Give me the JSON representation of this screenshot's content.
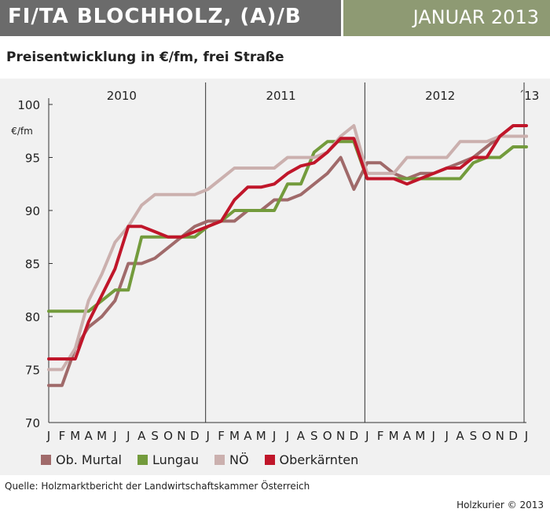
{
  "header": {
    "title": "FI/TA BLOCHHOLZ, (A)/B",
    "date": "JANUAR 2013"
  },
  "subtitle": "Preisentwicklung in €/fm, frei Straße",
  "source": "Quelle: Holzmarktbericht der Landwirtschaftskammer Österreich",
  "credit": "Holzkurier © 2013",
  "chart_data": {
    "type": "line",
    "ylabel": "€/fm",
    "ylim": [
      70,
      100
    ],
    "yticks": [
      70,
      75,
      80,
      85,
      90,
      95,
      100
    ],
    "years": [
      "2010",
      "2011",
      "2012",
      "´13"
    ],
    "month_labels": [
      "J",
      "F",
      "M",
      "A",
      "M",
      "J",
      "J",
      "A",
      "S",
      "O",
      "N",
      "D",
      "J",
      "F",
      "M",
      "A",
      "M",
      "J",
      "J",
      "A",
      "S",
      "O",
      "N",
      "D",
      "J",
      "F",
      "M",
      "A",
      "M",
      "J",
      "J",
      "A",
      "S",
      "O",
      "N",
      "D",
      "J"
    ],
    "x": [
      "2010-01",
      "2010-02",
      "2010-03",
      "2010-04",
      "2010-05",
      "2010-06",
      "2010-07",
      "2010-08",
      "2010-09",
      "2010-10",
      "2010-11",
      "2010-12",
      "2011-01",
      "2011-02",
      "2011-03",
      "2011-04",
      "2011-05",
      "2011-06",
      "2011-07",
      "2011-08",
      "2011-09",
      "2011-10",
      "2011-11",
      "2011-12",
      "2012-01",
      "2012-02",
      "2012-03",
      "2012-04",
      "2012-05",
      "2012-06",
      "2012-07",
      "2012-08",
      "2012-09",
      "2012-10",
      "2012-11",
      "2012-12",
      "2013-01"
    ],
    "grid": false,
    "legend_position": "bottom",
    "series": [
      {
        "name": "Ob. Murtal",
        "color": "#a06a6a",
        "values": [
          73.5,
          73.5,
          77,
          79,
          80,
          81.5,
          85,
          85,
          85.5,
          86.5,
          87.5,
          88.5,
          89,
          89,
          89,
          90,
          90,
          91,
          91,
          91.5,
          92.5,
          93.5,
          95,
          92,
          94.5,
          94.5,
          93.5,
          93,
          93.5,
          93.5,
          94,
          94.5,
          95,
          96,
          97,
          97,
          97
        ]
      },
      {
        "name": "Lungau",
        "color": "#739b3c",
        "values": [
          80.5,
          80.5,
          80.5,
          80.5,
          81.5,
          82.5,
          82.5,
          87.5,
          87.5,
          87.5,
          87.5,
          87.5,
          88.5,
          89,
          90,
          90,
          90,
          90,
          92.5,
          92.5,
          95.5,
          96.5,
          96.5,
          96.5,
          93,
          93,
          93,
          93,
          93,
          93,
          93,
          93,
          94.5,
          95,
          95,
          96,
          96
        ]
      },
      {
        "name": "NÖ",
        "color": "#cbb0ae",
        "values": [
          75,
          75,
          77,
          81.5,
          84,
          87,
          88.5,
          90.5,
          91.5,
          91.5,
          91.5,
          91.5,
          92,
          93,
          94,
          94,
          94,
          94,
          95,
          95,
          95,
          95.5,
          97,
          98,
          93.5,
          93.5,
          93.5,
          95,
          95,
          95,
          95,
          96.5,
          96.5,
          96.5,
          97,
          97,
          97
        ]
      },
      {
        "name": "Oberkärnten",
        "color": "#c0162a",
        "values": [
          76,
          76,
          76,
          79.5,
          82,
          84.5,
          88.5,
          88.5,
          88,
          87.5,
          87.5,
          88,
          88.5,
          89,
          91,
          92.2,
          92.2,
          92.5,
          93.5,
          94.2,
          94.5,
          95.5,
          96.8,
          96.8,
          93,
          93,
          93,
          92.5,
          93,
          93.5,
          94,
          94,
          95,
          95,
          97,
          98,
          98
        ]
      }
    ]
  }
}
